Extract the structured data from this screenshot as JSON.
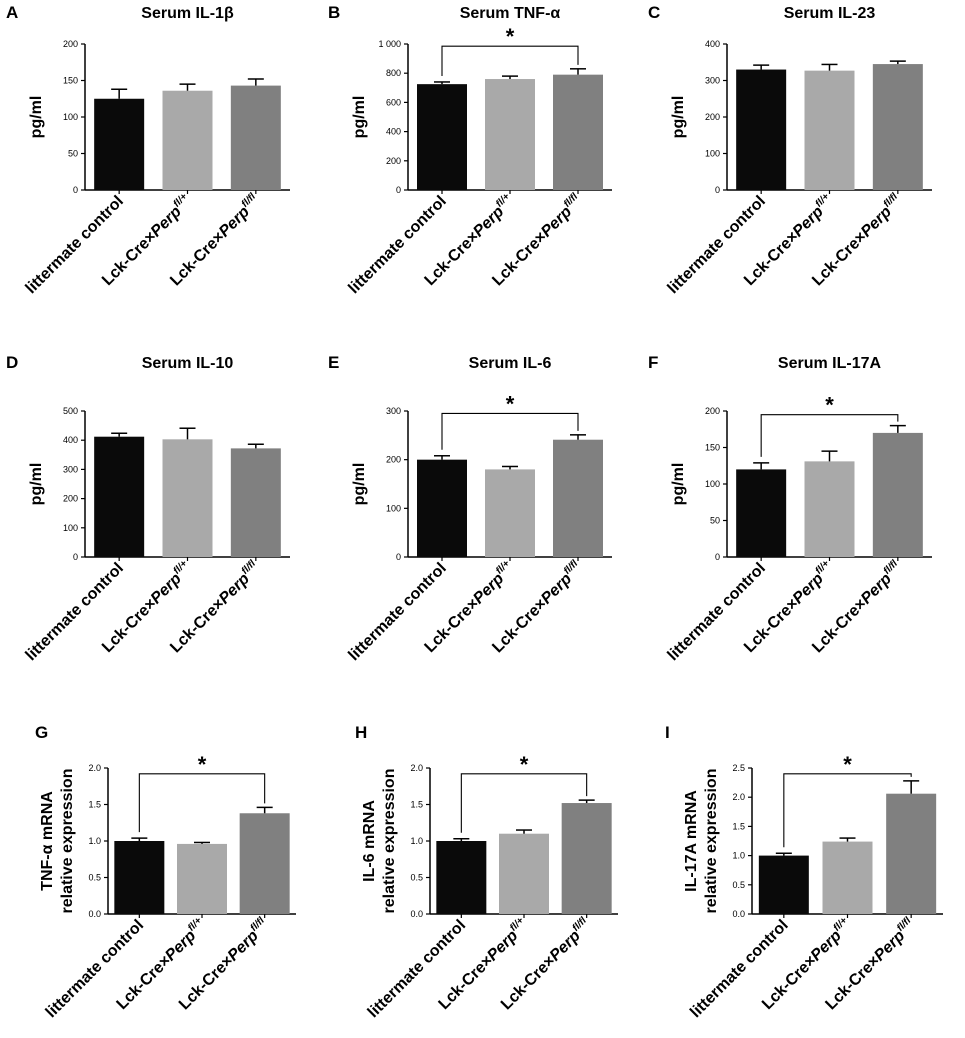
{
  "figure": {
    "name": "cytokine-bar-chart-panels"
  },
  "category_parts": [
    {
      "base": "littermate control",
      "italic": "",
      "sup": ""
    },
    {
      "base": "Lck-Cre×",
      "italic": "Perp",
      "sup": "fl/+"
    },
    {
      "base": "Lck-Cre×",
      "italic": "Perp",
      "sup": "fl/fl"
    }
  ],
  "chart_data": [
    {
      "panel_letter": "A",
      "type": "bar",
      "title": "Serum IL-1β",
      "ylabel": [
        "pg/ml"
      ],
      "categories": [
        "littermate control",
        "Lck-Cre×Perp fl/+",
        "Lck-Cre×Perp fl/fl"
      ],
      "values": [
        125,
        136,
        143
      ],
      "errors": [
        13,
        9,
        9
      ],
      "ylim": [
        0,
        200
      ],
      "yticks": [
        "0",
        "50",
        "100",
        "150",
        "200"
      ],
      "ytick_values": [
        0,
        50,
        100,
        150,
        200
      ],
      "colors": [
        "#0a0a0a",
        "#a9a9a9",
        "#808080"
      ],
      "significance": null
    },
    {
      "panel_letter": "B",
      "type": "bar",
      "title": "Serum TNF-α",
      "ylabel": [
        "pg/ml"
      ],
      "categories": [
        "littermate control",
        "Lck-Cre×Perp fl/+",
        "Lck-Cre×Perp fl/fl"
      ],
      "values": [
        725,
        760,
        790
      ],
      "errors": [
        15,
        20,
        40
      ],
      "ylim": [
        0,
        1000
      ],
      "yticks": [
        "0",
        "200",
        "400",
        "600",
        "800",
        "1 000"
      ],
      "ytick_values": [
        0,
        200,
        400,
        600,
        800,
        1000
      ],
      "colors": [
        "#0a0a0a",
        "#a9a9a9",
        "#808080"
      ],
      "significance": {
        "from": 0,
        "to": 2,
        "label": "*",
        "level": 985
      }
    },
    {
      "panel_letter": "C",
      "type": "bar",
      "title": "Serum IL-23",
      "ylabel": [
        "pg/ml"
      ],
      "categories": [
        "littermate control",
        "Lck-Cre×Perp fl/+",
        "Lck-Cre×Perp fl/fl"
      ],
      "values": [
        330,
        327,
        345
      ],
      "errors": [
        12,
        17,
        8
      ],
      "ylim": [
        0,
        400
      ],
      "yticks": [
        "0",
        "100",
        "200",
        "300",
        "400"
      ],
      "ytick_values": [
        0,
        100,
        200,
        300,
        400
      ],
      "colors": [
        "#0a0a0a",
        "#a9a9a9",
        "#808080"
      ],
      "significance": null
    },
    {
      "panel_letter": "D",
      "type": "bar",
      "title": "Serum IL-10",
      "ylabel": [
        "pg/ml"
      ],
      "categories": [
        "littermate control",
        "Lck-Cre×Perp fl/+",
        "Lck-Cre×Perp fl/fl"
      ],
      "values": [
        412,
        403,
        372
      ],
      "errors": [
        12,
        38,
        14
      ],
      "ylim": [
        0,
        500
      ],
      "yticks": [
        "0",
        "100",
        "200",
        "300",
        "400",
        "500"
      ],
      "ytick_values": [
        0,
        100,
        200,
        300,
        400,
        500
      ],
      "colors": [
        "#0a0a0a",
        "#a9a9a9",
        "#808080"
      ],
      "significance": null
    },
    {
      "panel_letter": "E",
      "type": "bar",
      "title": "Serum IL-6",
      "ylabel": [
        "pg/ml"
      ],
      "categories": [
        "littermate control",
        "Lck-Cre×Perp fl/+",
        "Lck-Cre×Perp fl/fl"
      ],
      "values": [
        200,
        180,
        241
      ],
      "errors": [
        8,
        6,
        10
      ],
      "ylim": [
        0,
        300
      ],
      "yticks": [
        "0",
        "100",
        "200",
        "300"
      ],
      "ytick_values": [
        0,
        100,
        200,
        300
      ],
      "colors": [
        "#0a0a0a",
        "#a9a9a9",
        "#808080"
      ],
      "significance": {
        "from": 0,
        "to": 2,
        "label": "*",
        "level": 295
      }
    },
    {
      "panel_letter": "F",
      "type": "bar",
      "title": "Serum IL-17A",
      "ylabel": [
        "pg/ml"
      ],
      "categories": [
        "littermate control",
        "Lck-Cre×Perp fl/+",
        "Lck-Cre×Perp fl/fl"
      ],
      "values": [
        120,
        131,
        170
      ],
      "errors": [
        9,
        14,
        10
      ],
      "ylim": [
        0,
        200
      ],
      "yticks": [
        "0",
        "50",
        "100",
        "150",
        "200"
      ],
      "ytick_values": [
        0,
        50,
        100,
        150,
        200
      ],
      "colors": [
        "#0a0a0a",
        "#a9a9a9",
        "#808080"
      ],
      "significance": {
        "from": 0,
        "to": 2,
        "label": "*",
        "level": 195
      }
    },
    {
      "panel_letter": "G",
      "type": "bar",
      "title": "",
      "ylabel": [
        "TNF-α mRNA",
        "relative expression"
      ],
      "categories": [
        "littermate control",
        "Lck-Cre×Perp fl/+",
        "Lck-Cre×Perp fl/fl"
      ],
      "values": [
        1.0,
        0.96,
        1.38
      ],
      "errors": [
        0.04,
        0.02,
        0.08
      ],
      "ylim": [
        0,
        2.0
      ],
      "yticks": [
        "0.0",
        "0.5",
        "1.0",
        "1.5",
        "2.0"
      ],
      "ytick_values": [
        0,
        0.5,
        1.0,
        1.5,
        2.0
      ],
      "colors": [
        "#0a0a0a",
        "#a9a9a9",
        "#808080"
      ],
      "significance": {
        "from": 0,
        "to": 2,
        "label": "*",
        "level": 1.92
      }
    },
    {
      "panel_letter": "H",
      "type": "bar",
      "title": "",
      "ylabel": [
        "IL-6 mRNA",
        "relative expression"
      ],
      "categories": [
        "littermate control",
        "Lck-Cre×Perp fl/+",
        "Lck-Cre×Perp fl/fl"
      ],
      "values": [
        1.0,
        1.1,
        1.52
      ],
      "errors": [
        0.03,
        0.05,
        0.04
      ],
      "ylim": [
        0,
        2.0
      ],
      "yticks": [
        "0.0",
        "0.5",
        "1.0",
        "1.5",
        "2.0"
      ],
      "ytick_values": [
        0,
        0.5,
        1.0,
        1.5,
        2.0
      ],
      "colors": [
        "#0a0a0a",
        "#a9a9a9",
        "#808080"
      ],
      "significance": {
        "from": 0,
        "to": 2,
        "label": "*",
        "level": 1.92
      }
    },
    {
      "panel_letter": "I",
      "type": "bar",
      "title": "",
      "ylabel": [
        "IL-17A mRNA",
        "relative expression"
      ],
      "categories": [
        "littermate control",
        "Lck-Cre×Perp fl/+",
        "Lck-Cre×Perp fl/fl"
      ],
      "values": [
        1.0,
        1.24,
        2.06
      ],
      "errors": [
        0.04,
        0.06,
        0.22
      ],
      "ylim": [
        0,
        2.5
      ],
      "yticks": [
        "0.0",
        "0.5",
        "1.0",
        "1.5",
        "2.0",
        "2.5"
      ],
      "ytick_values": [
        0,
        0.5,
        1.0,
        1.5,
        2.0,
        2.5
      ],
      "colors": [
        "#0a0a0a",
        "#a9a9a9",
        "#808080"
      ],
      "significance": {
        "from": 0,
        "to": 2,
        "label": "*",
        "level": 2.4
      }
    }
  ]
}
